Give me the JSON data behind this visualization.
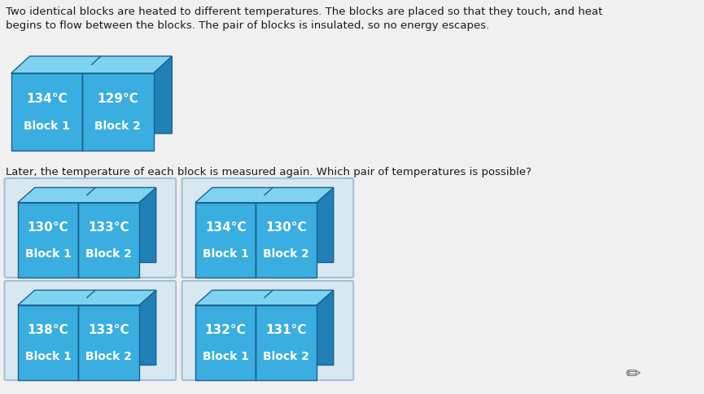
{
  "background_color": "#e0e8ee",
  "page_bg": "#f0f0f0",
  "text_color": "#1a1a1a",
  "paragraph1": "Two identical blocks are heated to different temperatures. The blocks are placed so that they touch, and heat\nbegins to flow between the blocks. The pair of blocks is insulated, so no energy escapes.",
  "paragraph2": "Later, the temperature of each block is measured again. Which pair of temperatures is possible?",
  "initial_block": {
    "temp1": "134°C",
    "temp2": "129°C",
    "label1": "Block 1",
    "label2": "Block 2"
  },
  "answer_blocks": [
    {
      "temp1": "130°C",
      "temp2": "133°C",
      "label1": "Block 1",
      "label2": "Block 2"
    },
    {
      "temp1": "134°C",
      "temp2": "130°C",
      "label1": "Block 1",
      "label2": "Block 2"
    },
    {
      "temp1": "138°C",
      "temp2": "133°C",
      "label1": "Block 1",
      "label2": "Block 2"
    },
    {
      "temp1": "132°C",
      "temp2": "131°C",
      "label1": "Block 1",
      "label2": "Block 2"
    }
  ],
  "block_face_color": "#3aaee0",
  "block_top_color": "#7ed4f0",
  "block_side_color": "#2080b8",
  "block_edge_color": "#1a6090",
  "box_bg": "#d8e8f0",
  "box_border": "#a0c0d8",
  "font_size_temp": 11,
  "font_size_label": 10,
  "font_size_text": 9.5
}
